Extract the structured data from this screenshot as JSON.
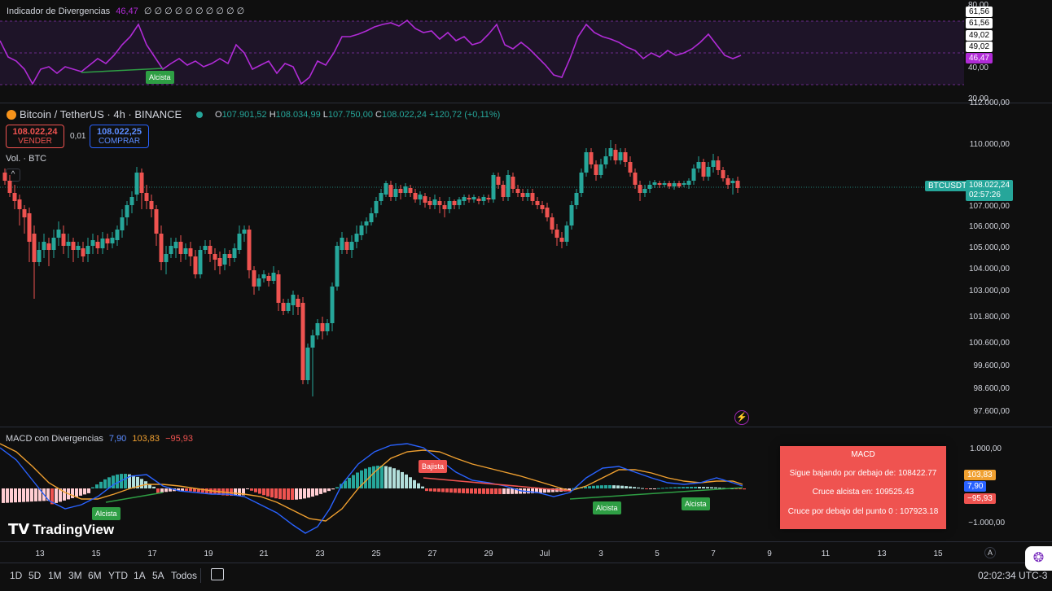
{
  "colors": {
    "up": "#26a69a",
    "down": "#ef5350",
    "rsi": "#b02bd6",
    "macd": "#2962ff",
    "signal": "#f0a030",
    "bg": "#0f0f0f"
  },
  "rsi": {
    "title": "Indicador de Divergencias",
    "value": "46,47",
    "zeros": "∅ ∅ ∅ ∅ ∅ ∅ ∅ ∅ ∅ ∅",
    "axis": [
      "80,00",
      "40,00",
      "20,00"
    ],
    "tags": [
      "61,56",
      "61,56",
      "49,02",
      "49,02",
      "46,47"
    ],
    "signal_label": "Alcista"
  },
  "main": {
    "symbol": "Bitcoin / TetherUS · 4h · BINANCE",
    "ohlc": {
      "o_label": "O",
      "o": "107.901,52",
      "h_label": "H",
      "h": "108.034,99",
      "l_label": "L",
      "l": "107.750,00",
      "c_label": "C",
      "c": "108.022,24",
      "change": "+120,72 (+0,11%)"
    },
    "sell": {
      "price": "108.022,24",
      "label": "VENDER"
    },
    "spread": "0,01",
    "buy": {
      "price": "108.022,25",
      "label": "COMPRAR"
    },
    "volume_label": "Vol. · BTC",
    "price_axis": [
      "112.000,00",
      "110.000,00",
      "107.000,00",
      "106.000,00",
      "105.000,00",
      "104.000,00",
      "103.000,00",
      "101.800,00",
      "100.600,00",
      "99.600,00",
      "98.600,00",
      "97.600,00"
    ],
    "ticker": "BTCUSDT",
    "last_price": "108.022,24",
    "countdown": "02:57:26"
  },
  "macd": {
    "title": "MACD con Divergencias",
    "v1": "7,90",
    "v2": "103,83",
    "v3": "−95,93",
    "axis": [
      "1.000,00",
      "−1.000,00"
    ],
    "tags": [
      "103,83",
      "7,90",
      "−95,93"
    ],
    "labels": {
      "bear": "Bajista",
      "bull1": "Alcista",
      "bull2": "Alcista",
      "bull3": "Alcista"
    },
    "popup": {
      "title": "MACD",
      "line1": "Sigue bajando por debajo de: 108422.77",
      "line2": "Cruce alcista en: 109525.43",
      "line3": "Cruce por debajo del punto 0 : 107923.18"
    }
  },
  "time_axis": [
    "13",
    "15",
    "17",
    "19",
    "21",
    "23",
    "25",
    "27",
    "29",
    "Jul",
    "3",
    "5",
    "7",
    "9",
    "11",
    "13",
    "15"
  ],
  "bottom": {
    "ranges": [
      "1D",
      "5D",
      "1M",
      "3M",
      "6M",
      "YTD",
      "1A",
      "5A",
      "Todos"
    ],
    "clock": "02:02:34 UTC-3",
    "auto": "A"
  },
  "logo": "TradingView"
}
